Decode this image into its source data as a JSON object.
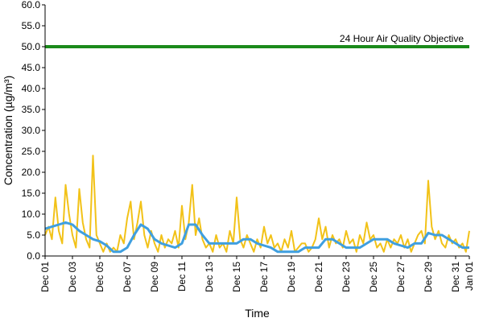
{
  "chart_data": {
    "type": "line",
    "xlabel": "Time",
    "ylabel": "Concentration (µg/m³)",
    "ylim": [
      0,
      60
    ],
    "y_ticks": [
      "0.0",
      "5.0",
      "10.0",
      "15.0",
      "20.0",
      "25.0",
      "30.0",
      "35.0",
      "40.0",
      "45.0",
      "50.0",
      "55.0",
      "60.0"
    ],
    "x_ticks": [
      "Dec 01",
      "Dec 03",
      "Dec 05",
      "Dec 07",
      "Dec 09",
      "Dec 11",
      "Dec 13",
      "Dec 15",
      "Dec 17",
      "Dec 19",
      "Dec 21",
      "Dec 23",
      "Dec 25",
      "Dec 27",
      "Dec 29",
      "Dec 31",
      "Jan 01"
    ],
    "grid": false,
    "legend": "none",
    "annotations": [
      {
        "text": "24 Hour Air Quality Objective",
        "y": 50
      }
    ],
    "series": [
      {
        "color": "#f2c218",
        "x": [
          "Dec 01",
          "Dec 01 06:00",
          "Dec 01 12:00",
          "Dec 01 18:00",
          "Dec 02",
          "Dec 02 06:00",
          "Dec 02 12:00",
          "Dec 02 18:00",
          "Dec 03",
          "Dec 03 06:00",
          "Dec 03 12:00",
          "Dec 03 18:00",
          "Dec 04",
          "Dec 04 06:00",
          "Dec 04 12:00",
          "Dec 04 18:00",
          "Dec 05",
          "Dec 05 06:00",
          "Dec 05 12:00",
          "Dec 05 18:00",
          "Dec 06",
          "Dec 06 06:00",
          "Dec 06 12:00",
          "Dec 06 18:00",
          "Dec 07",
          "Dec 07 06:00",
          "Dec 07 12:00",
          "Dec 07 18:00",
          "Dec 08",
          "Dec 08 06:00",
          "Dec 08 12:00",
          "Dec 08 18:00",
          "Dec 09",
          "Dec 09 06:00",
          "Dec 09 12:00",
          "Dec 09 18:00",
          "Dec 10",
          "Dec 10 06:00",
          "Dec 10 12:00",
          "Dec 10 18:00",
          "Dec 11",
          "Dec 11 06:00",
          "Dec 11 12:00",
          "Dec 11 18:00",
          "Dec 12",
          "Dec 12 06:00",
          "Dec 12 12:00",
          "Dec 12 18:00",
          "Dec 13",
          "Dec 13 06:00",
          "Dec 13 12:00",
          "Dec 13 18:00",
          "Dec 14",
          "Dec 14 06:00",
          "Dec 14 12:00",
          "Dec 14 18:00",
          "Dec 15",
          "Dec 15 06:00",
          "Dec 15 12:00",
          "Dec 15 18:00",
          "Dec 16",
          "Dec 16 06:00",
          "Dec 16 12:00",
          "Dec 16 18:00",
          "Dec 17",
          "Dec 17 06:00",
          "Dec 17 12:00",
          "Dec 17 18:00",
          "Dec 18",
          "Dec 18 06:00",
          "Dec 18 12:00",
          "Dec 18 18:00",
          "Dec 19",
          "Dec 19 06:00",
          "Dec 19 12:00",
          "Dec 19 18:00",
          "Dec 20",
          "Dec 20 06:00",
          "Dec 20 12:00",
          "Dec 20 18:00",
          "Dec 21",
          "Dec 21 06:00",
          "Dec 21 12:00",
          "Dec 21 18:00",
          "Dec 22",
          "Dec 22 06:00",
          "Dec 22 12:00",
          "Dec 22 18:00",
          "Dec 23",
          "Dec 23 06:00",
          "Dec 23 12:00",
          "Dec 23 18:00",
          "Dec 24",
          "Dec 24 06:00",
          "Dec 24 12:00",
          "Dec 24 18:00",
          "Dec 25",
          "Dec 25 06:00",
          "Dec 25 12:00",
          "Dec 25 18:00",
          "Dec 26",
          "Dec 26 06:00",
          "Dec 26 12:00",
          "Dec 26 18:00",
          "Dec 27",
          "Dec 27 06:00",
          "Dec 27 12:00",
          "Dec 27 18:00",
          "Dec 28",
          "Dec 28 06:00",
          "Dec 28 12:00",
          "Dec 28 18:00",
          "Dec 29",
          "Dec 29 06:00",
          "Dec 29 12:00",
          "Dec 29 18:00",
          "Dec 30",
          "Dec 30 06:00",
          "Dec 30 12:00",
          "Dec 30 18:00",
          "Dec 31",
          "Dec 31 06:00",
          "Dec 31 12:00",
          "Dec 31 18:00",
          "Jan 01"
        ],
        "values": [
          5,
          7,
          4,
          14,
          6,
          3,
          17,
          10,
          5,
          2,
          16,
          8,
          4,
          2,
          24,
          5,
          3,
          1,
          3,
          1,
          2,
          1,
          5,
          3,
          9,
          13,
          4,
          8,
          13,
          5,
          2,
          6,
          3,
          1,
          5,
          2,
          4,
          3,
          6,
          2,
          12,
          4,
          8,
          17,
          5,
          9,
          4,
          2,
          3,
          1,
          5,
          2,
          3,
          1,
          6,
          3,
          14,
          4,
          2,
          5,
          3,
          1,
          4,
          2,
          7,
          3,
          5,
          2,
          3,
          1,
          4,
          2,
          6,
          1,
          2,
          3,
          3,
          1,
          2,
          4,
          9,
          4,
          7,
          2,
          5,
          3,
          4,
          2,
          6,
          3,
          4,
          1,
          5,
          3,
          8,
          4,
          5,
          2,
          3,
          1,
          4,
          2,
          4,
          3,
          5,
          2,
          4,
          1,
          3,
          5,
          6,
          3,
          18,
          7,
          4,
          6,
          3,
          2,
          5,
          3,
          4,
          2,
          3,
          1,
          6
        ]
      },
      {
        "color": "#3f9fe0",
        "x": [
          "Dec 01",
          "Dec 01 12:00",
          "Dec 02",
          "Dec 02 12:00",
          "Dec 03",
          "Dec 03 12:00",
          "Dec 04",
          "Dec 04 12:00",
          "Dec 05",
          "Dec 05 12:00",
          "Dec 06",
          "Dec 06 12:00",
          "Dec 07",
          "Dec 07 12:00",
          "Dec 08",
          "Dec 08 12:00",
          "Dec 09",
          "Dec 09 12:00",
          "Dec 10",
          "Dec 10 12:00",
          "Dec 11",
          "Dec 11 12:00",
          "Dec 12",
          "Dec 12 12:00",
          "Dec 13",
          "Dec 13 12:00",
          "Dec 14",
          "Dec 14 12:00",
          "Dec 15",
          "Dec 15 12:00",
          "Dec 16",
          "Dec 16 12:00",
          "Dec 17",
          "Dec 17 12:00",
          "Dec 18",
          "Dec 18 12:00",
          "Dec 19",
          "Dec 19 12:00",
          "Dec 20",
          "Dec 20 12:00",
          "Dec 21",
          "Dec 21 12:00",
          "Dec 22",
          "Dec 22 12:00",
          "Dec 23",
          "Dec 23 12:00",
          "Dec 24",
          "Dec 24 12:00",
          "Dec 25",
          "Dec 25 12:00",
          "Dec 26",
          "Dec 26 12:00",
          "Dec 27",
          "Dec 27 12:00",
          "Dec 28",
          "Dec 28 12:00",
          "Dec 29",
          "Dec 29 12:00",
          "Dec 30",
          "Dec 30 12:00",
          "Dec 31",
          "Dec 31 12:00",
          "Jan 01"
        ],
        "values": [
          6.5,
          7,
          7.5,
          8,
          7.5,
          6,
          5,
          4,
          3.5,
          2.5,
          1,
          1,
          2,
          5,
          7.5,
          6.5,
          4,
          3,
          2.5,
          2,
          3,
          7.5,
          7.5,
          5,
          3,
          3,
          3,
          3,
          3,
          4,
          4,
          3,
          2.5,
          2,
          1,
          1,
          1,
          1,
          2,
          2,
          2,
          4,
          4,
          3,
          2,
          2,
          2,
          3,
          4,
          4,
          4,
          3,
          2.5,
          2,
          3,
          3,
          5.5,
          5,
          5,
          4,
          3,
          2,
          2
        ]
      }
    ],
    "reference_line": {
      "value": 50,
      "color": "#1a8a1a"
    }
  }
}
